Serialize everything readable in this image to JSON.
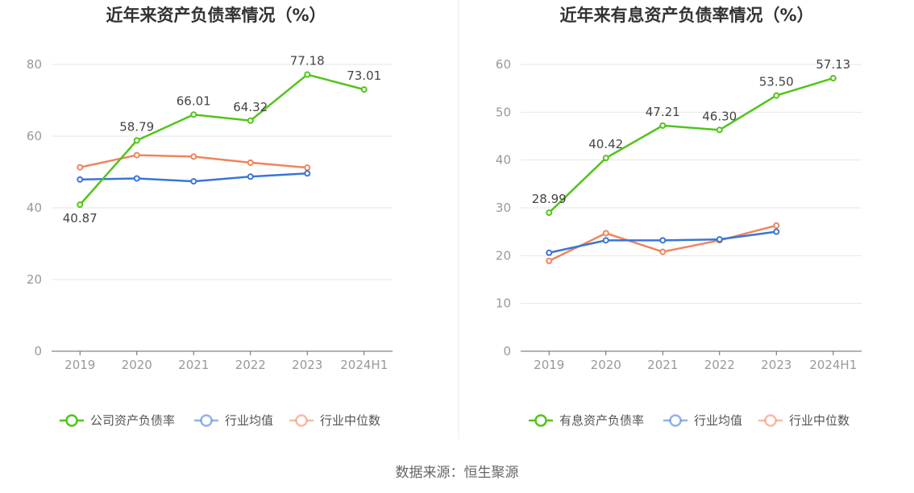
{
  "source": "数据来源：恒生聚源",
  "chart_data": [
    {
      "type": "line",
      "title": "近年来资产负债率情况（%）",
      "categories": [
        "2019",
        "2020",
        "2021",
        "2022",
        "2023",
        "2024H1"
      ],
      "ylim": [
        0,
        80
      ],
      "yticks": [
        0,
        20,
        40,
        60,
        80
      ],
      "grid": true,
      "legend": "bottom",
      "series": [
        {
          "name": "公司资产负债率",
          "color": "#52c41a",
          "values": [
            40.87,
            58.79,
            66.01,
            64.32,
            77.18,
            73.01
          ],
          "labels": [
            "40.87",
            "58.79",
            "66.01",
            "64.32",
            "77.18",
            "73.01"
          ],
          "labeled": true
        },
        {
          "name": "行业均值",
          "color": "#3a75d6",
          "values": [
            47.9,
            48.2,
            47.4,
            48.7,
            49.6,
            null
          ],
          "labeled": false
        },
        {
          "name": "行业中位数",
          "color": "#f0845c",
          "values": [
            51.3,
            54.7,
            54.3,
            52.6,
            51.2,
            null
          ],
          "labeled": false
        }
      ]
    },
    {
      "type": "line",
      "title": "近年来有息资产负债率情况（%）",
      "categories": [
        "2019",
        "2020",
        "2021",
        "2022",
        "2023",
        "2024H1"
      ],
      "ylim": [
        0,
        60
      ],
      "yticks": [
        0,
        10,
        20,
        30,
        40,
        50,
        60
      ],
      "grid": true,
      "legend": "bottom",
      "series": [
        {
          "name": "有息资产负债率",
          "color": "#52c41a",
          "values": [
            28.99,
            40.42,
            47.21,
            46.3,
            53.5,
            57.13
          ],
          "labels": [
            "28.99",
            "40.42",
            "47.21",
            "46.30",
            "53.50",
            "57.13"
          ],
          "labeled": true
        },
        {
          "name": "行业均值",
          "color": "#3a75d6",
          "values": [
            20.6,
            23.2,
            23.2,
            23.4,
            25.0,
            null
          ],
          "labeled": false
        },
        {
          "name": "行业中位数",
          "color": "#f0845c",
          "values": [
            18.9,
            24.7,
            20.8,
            23.2,
            26.3,
            null
          ],
          "labeled": false
        }
      ]
    }
  ]
}
